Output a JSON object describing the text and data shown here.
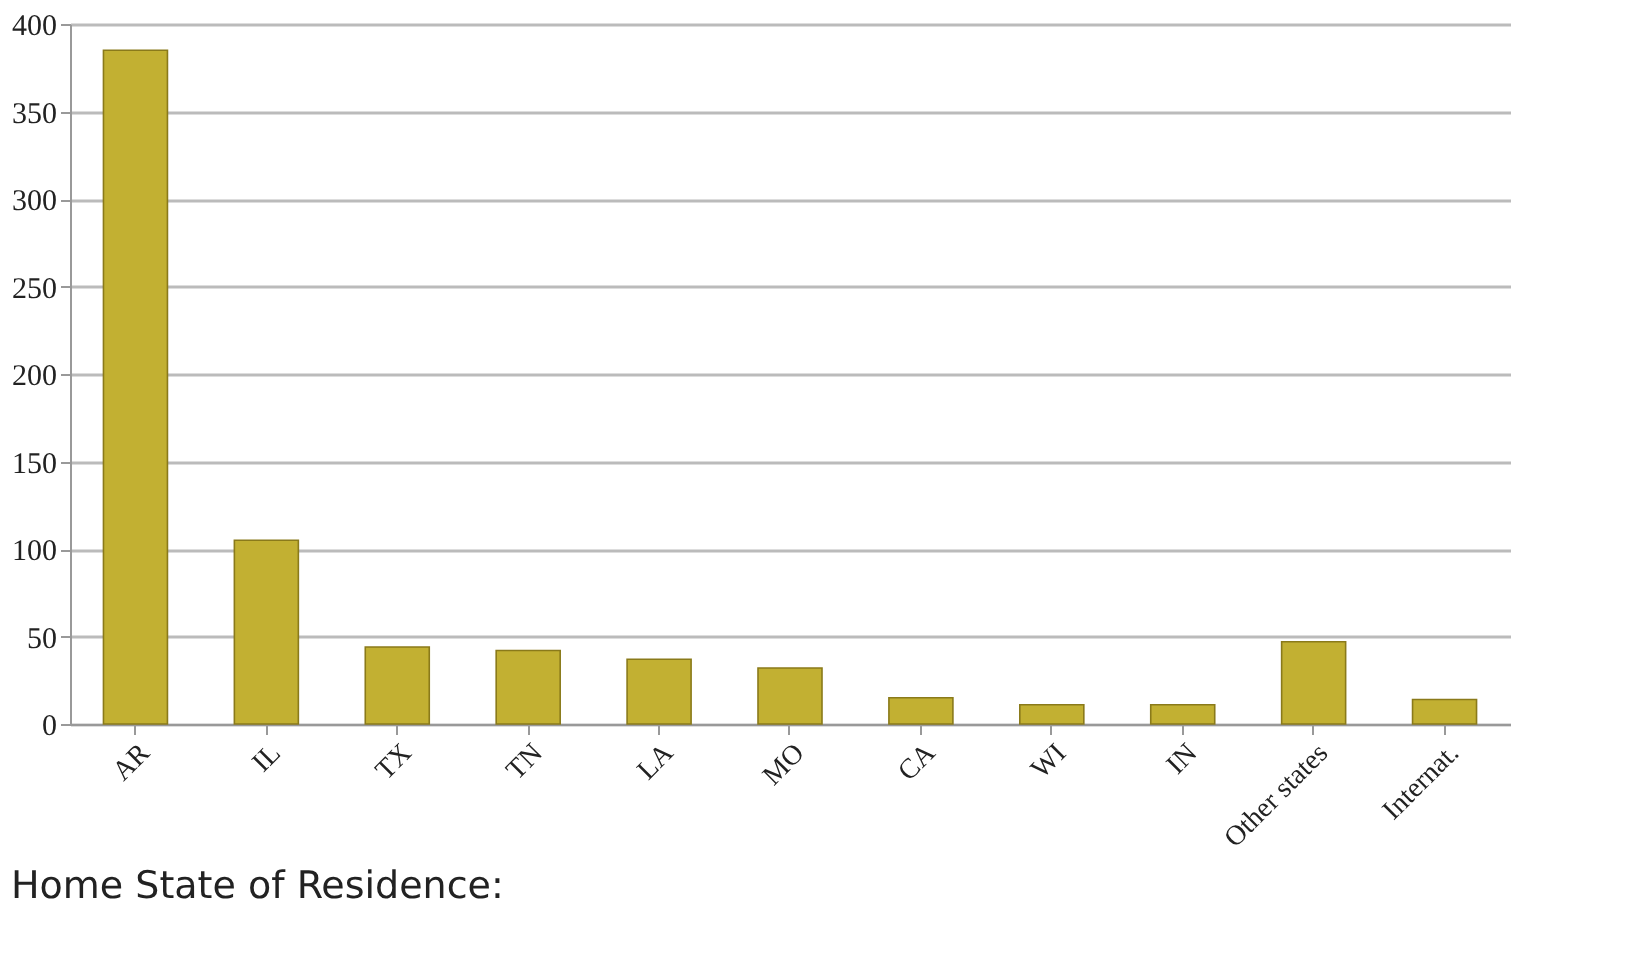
{
  "chart_data": {
    "type": "bar",
    "title": "Home State of Residence:",
    "categories": [
      "AR",
      "IL",
      "TX",
      "TN",
      "LA",
      "MO",
      "CA",
      "WI",
      "IN",
      "Other states",
      "Internat."
    ],
    "values": [
      385,
      105,
      44,
      42,
      37,
      32,
      15,
      11,
      11,
      47,
      14
    ],
    "color": "#c2b032",
    "ylim": [
      0,
      400
    ],
    "yticks": [
      0,
      50,
      100,
      150,
      200,
      250,
      300,
      350,
      400
    ],
    "grid": "y"
  }
}
